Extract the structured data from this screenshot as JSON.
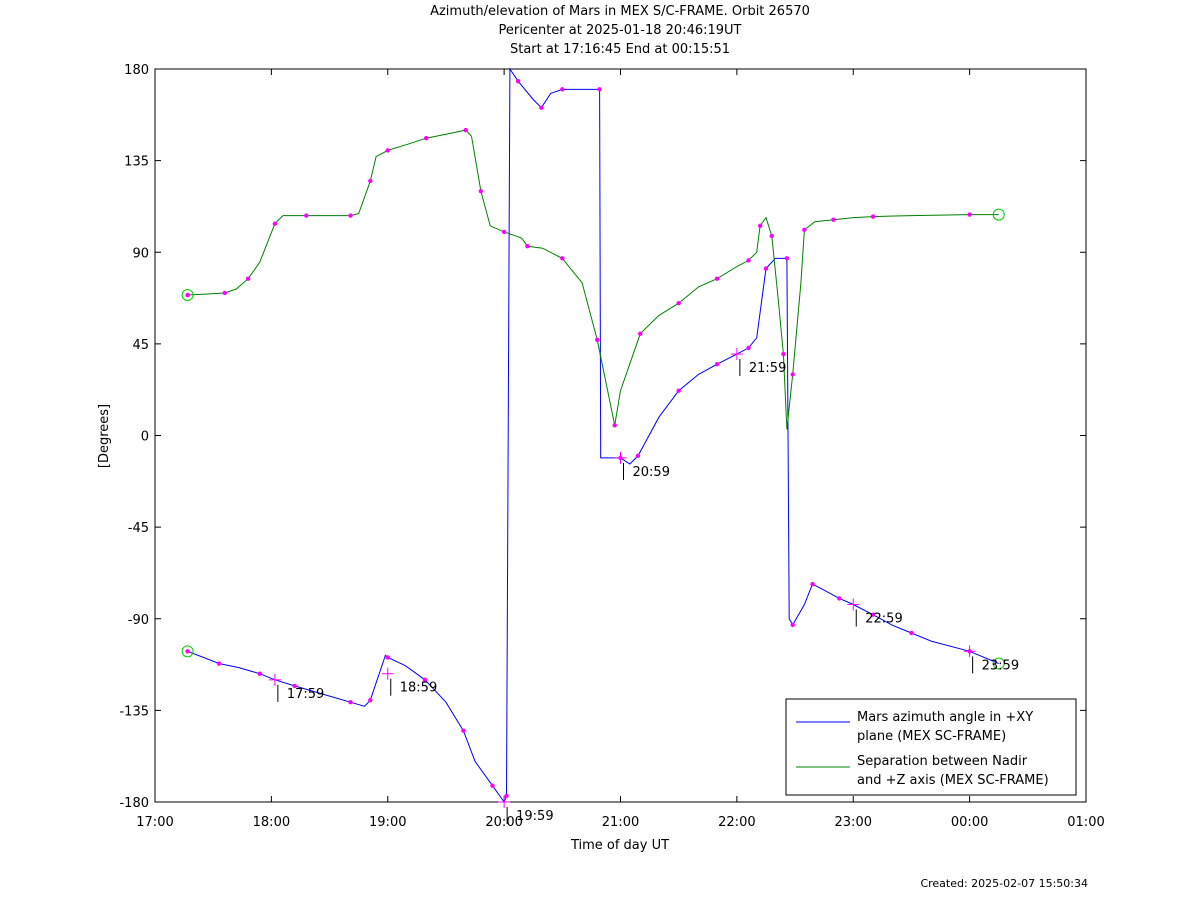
{
  "titles": {
    "line1": "Azimuth/elevation of Mars in MEX S/C-FRAME.  Orbit 26570",
    "line2": "Pericenter at 2025-01-18 20:46:19UT",
    "line3": "Start at 17:16:45 End at 00:15:51"
  },
  "footer": {
    "created": "Created: 2025-02-07 15:50:34"
  },
  "colors": {
    "azimuth": "#0000ff",
    "separation": "#008000",
    "markers": "#ff00ff",
    "endpoints": "#00cc00"
  },
  "chart_data": {
    "type": "line",
    "xlabel": "Time of day UT",
    "ylabel": "[Degrees]",
    "x_unit": "hours since 17:00 UT",
    "xlim": [
      17,
      25
    ],
    "ylim": [
      -180,
      180
    ],
    "xticks": [
      "17:00",
      "18:00",
      "19:00",
      "20:00",
      "21:00",
      "22:00",
      "23:00",
      "00:00",
      "01:00"
    ],
    "yticks": [
      "180",
      "135",
      "90",
      "45",
      "0",
      "-45",
      "-90",
      "-135",
      "-180"
    ],
    "grid": false,
    "legend_position": "bottom-right",
    "series": [
      {
        "name": "Mars azimuth angle in +XY plane (MEX SC-FRAME)",
        "legend_lines": [
          "Mars azimuth angle in +XY",
          "plane (MEX SC-FRAME)"
        ],
        "color": "#0000ff",
        "points": [
          [
            17.28,
            -106
          ],
          [
            17.37,
            -108
          ],
          [
            17.55,
            -112
          ],
          [
            17.72,
            -114
          ],
          [
            17.9,
            -117
          ],
          [
            18.03,
            -120
          ],
          [
            18.2,
            -123
          ],
          [
            18.5,
            -128
          ],
          [
            18.68,
            -131
          ],
          [
            18.8,
            -133
          ],
          [
            18.85,
            -130
          ],
          [
            18.98,
            -108
          ],
          [
            19.0,
            -109
          ],
          [
            19.15,
            -113
          ],
          [
            19.32,
            -120
          ],
          [
            19.5,
            -131
          ],
          [
            19.65,
            -145
          ],
          [
            19.75,
            -160
          ],
          [
            19.9,
            -172
          ],
          [
            20.0,
            -180
          ],
          [
            20.02,
            -177
          ],
          [
            20.05,
            180
          ],
          [
            20.12,
            174
          ],
          [
            20.25,
            165
          ],
          [
            20.32,
            161
          ],
          [
            20.4,
            168
          ],
          [
            20.5,
            170
          ],
          [
            20.7,
            170
          ],
          [
            20.82,
            170
          ],
          [
            20.83,
            -11
          ],
          [
            21.0,
            -11
          ],
          [
            21.08,
            -14
          ],
          [
            21.15,
            -10
          ],
          [
            21.33,
            9
          ],
          [
            21.5,
            22
          ],
          [
            21.67,
            30
          ],
          [
            21.83,
            35
          ],
          [
            22.0,
            40
          ],
          [
            22.1,
            43
          ],
          [
            22.17,
            48
          ],
          [
            22.25,
            82
          ],
          [
            22.33,
            87
          ],
          [
            22.43,
            87
          ],
          [
            22.45,
            -90
          ],
          [
            22.48,
            -93
          ],
          [
            22.58,
            -83
          ],
          [
            22.65,
            -73
          ],
          [
            22.75,
            -76
          ],
          [
            22.88,
            -80
          ],
          [
            23.0,
            -83
          ],
          [
            23.17,
            -88
          ],
          [
            23.33,
            -93
          ],
          [
            23.5,
            -97
          ],
          [
            23.67,
            -101
          ],
          [
            24.0,
            -106
          ],
          [
            24.25,
            -112
          ]
        ]
      },
      {
        "name": "Separation between Nadir and +Z axis (MEX SC-FRAME)",
        "legend_lines": [
          "Separation between Nadir",
          "and +Z axis (MEX SC-FRAME)"
        ],
        "color": "#008000",
        "points": [
          [
            17.28,
            69
          ],
          [
            17.45,
            69.5
          ],
          [
            17.6,
            70
          ],
          [
            17.7,
            72
          ],
          [
            17.8,
            77
          ],
          [
            17.9,
            85
          ],
          [
            18.03,
            104
          ],
          [
            18.1,
            108
          ],
          [
            18.3,
            108
          ],
          [
            18.5,
            108
          ],
          [
            18.68,
            108
          ],
          [
            18.75,
            109
          ],
          [
            18.85,
            125
          ],
          [
            18.9,
            137
          ],
          [
            19.0,
            140
          ],
          [
            19.17,
            143
          ],
          [
            19.33,
            146
          ],
          [
            19.5,
            148
          ],
          [
            19.67,
            150
          ],
          [
            19.72,
            147
          ],
          [
            19.8,
            120
          ],
          [
            19.88,
            103
          ],
          [
            20.0,
            100
          ],
          [
            20.15,
            97
          ],
          [
            20.2,
            93
          ],
          [
            20.33,
            92
          ],
          [
            20.5,
            87
          ],
          [
            20.67,
            75
          ],
          [
            20.8,
            47
          ],
          [
            20.9,
            19
          ],
          [
            20.95,
            5
          ],
          [
            21.0,
            22
          ],
          [
            21.17,
            50
          ],
          [
            21.33,
            59
          ],
          [
            21.5,
            65
          ],
          [
            21.67,
            73
          ],
          [
            21.83,
            77
          ],
          [
            22.0,
            83
          ],
          [
            22.1,
            86
          ],
          [
            22.17,
            90
          ],
          [
            22.2,
            103
          ],
          [
            22.25,
            107
          ],
          [
            22.3,
            98
          ],
          [
            22.35,
            70
          ],
          [
            22.4,
            40
          ],
          [
            22.43,
            3
          ],
          [
            22.48,
            30
          ],
          [
            22.55,
            75
          ],
          [
            22.58,
            101
          ],
          [
            22.67,
            105
          ],
          [
            22.83,
            106
          ],
          [
            23.0,
            107
          ],
          [
            23.17,
            107.5
          ],
          [
            23.5,
            108
          ],
          [
            24.0,
            108.5
          ],
          [
            24.25,
            108.5
          ]
        ]
      }
    ],
    "annotations": [
      {
        "text": "17:59",
        "x": 18.03,
        "y": -120
      },
      {
        "text": "18:59",
        "x": 19.0,
        "y": -117
      },
      {
        "text": "19:59",
        "x": 20.0,
        "y": -180
      },
      {
        "text": "20:59",
        "x": 21.0,
        "y": -11
      },
      {
        "text": "21:59",
        "x": 22.0,
        "y": 40
      },
      {
        "text": "22:59",
        "x": 23.0,
        "y": -83
      },
      {
        "text": "23:59",
        "x": 24.0,
        "y": -106
      }
    ]
  }
}
